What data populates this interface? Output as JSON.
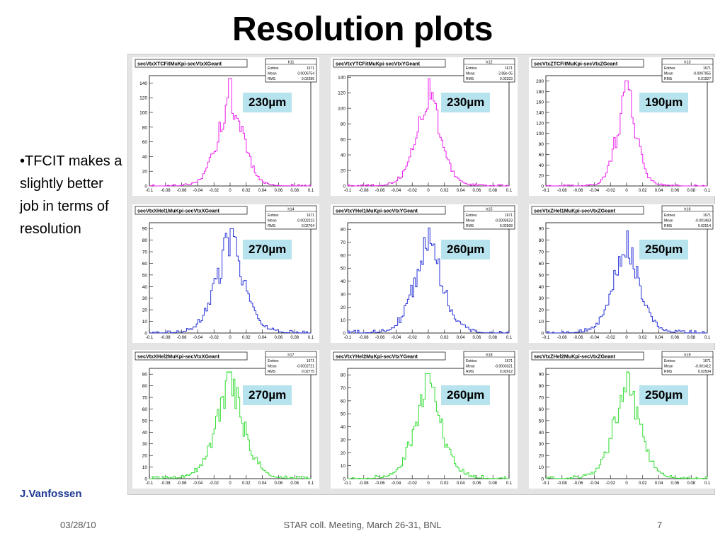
{
  "slide": {
    "title": "Resolution plots",
    "bullet": "•TFCIT makes a slightly better job in terms of resolution",
    "author": "J.Vanfossen",
    "footer_date": "03/28/10",
    "footer_meeting": "STAR coll. Meeting, March 26-31, BNL",
    "footer_page": "7"
  },
  "colors": {
    "magenta": "#ee22ee",
    "blue": "#2b35d8",
    "green": "#33dd33",
    "label_bg": "#b7e3ee"
  },
  "chart_data": [
    {
      "type": "histogram",
      "title": "secVtxXTCFitMuKpi-secVtxXGeant",
      "stats_name": "h11",
      "entries": "1671",
      "mean": "0.0006754",
      "rms": "0.02286",
      "resolution_label": "230µm",
      "color": "#ee22ee",
      "xlim": [
        -0.1,
        0.1
      ],
      "ylim": [
        0,
        150
      ],
      "peak": 146,
      "width": 0.022,
      "yticks": [
        0,
        20,
        40,
        60,
        80,
        100,
        120,
        140
      ],
      "xticks": [
        "-0.1",
        "-0.08",
        "-0.06",
        "-0.04",
        "-0.02",
        "0",
        "0.02",
        "0.04",
        "0.06",
        "0.08",
        "0.1"
      ]
    },
    {
      "type": "histogram",
      "title": "secVtxYTCFitMuKpi-secVtxYGeant",
      "stats_name": "h12",
      "entries": "1671",
      "mean": "2.88e-05",
      "rms": "0.02323",
      "resolution_label": "230µm",
      "color": "#ee22ee",
      "xlim": [
        -0.1,
        0.1
      ],
      "ylim": [
        0,
        142
      ],
      "peak": 138,
      "width": 0.022,
      "yticks": [
        0,
        20,
        40,
        60,
        80,
        100,
        120,
        140
      ],
      "xticks": [
        "-0.1",
        "-0.08",
        "-0.06",
        "-0.04",
        "-0.02",
        "0",
        "0.02",
        "0.04",
        "0.06",
        "0.08",
        "0.1"
      ]
    },
    {
      "type": "histogram",
      "title": "secVtxZTCFitMuKpi-secVtxZGeant",
      "stats_name": "h13",
      "entries": "1671",
      "mean": "-0.0007955",
      "rms": "0.01927",
      "resolution_label": "190µm",
      "color": "#ee22ee",
      "xlim": [
        -0.1,
        0.1
      ],
      "ylim": [
        0,
        210
      ],
      "peak": 200,
      "width": 0.018,
      "yticks": [
        0,
        20,
        40,
        60,
        80,
        100,
        120,
        140,
        160,
        180,
        200
      ],
      "xticks": [
        "-0.1",
        "-0.08",
        "-0.06",
        "-0.04",
        "-0.02",
        "0",
        "0.02",
        "0.04",
        "0.06",
        "0.08",
        "0.1"
      ]
    },
    {
      "type": "histogram",
      "title": "secVtxXHel1MuKpi-secVtxXGeant",
      "stats_name": "h14",
      "entries": "1671",
      "mean": "-0.0002213",
      "rms": "0.02764",
      "resolution_label": "270µm",
      "color": "#2b35d8",
      "xlim": [
        -0.1,
        0.1
      ],
      "ylim": [
        0,
        95
      ],
      "peak": 90,
      "width": 0.026,
      "yticks": [
        0,
        10,
        20,
        30,
        40,
        50,
        60,
        70,
        80,
        90
      ],
      "xticks": [
        "-0.1",
        "-0.08",
        "-0.06",
        "-0.04",
        "-0.02",
        "0",
        "0.02",
        "0.04",
        "0.06",
        "0.08",
        "0.1"
      ]
    },
    {
      "type": "histogram",
      "title": "secVtxYHel1MuKpi-secVtxYGeant",
      "stats_name": "h15",
      "entries": "1671",
      "mean": "-0.0003523",
      "rms": "0.02668",
      "resolution_label": "260µm",
      "color": "#2b35d8",
      "xlim": [
        -0.1,
        0.1
      ],
      "ylim": [
        0,
        85
      ],
      "peak": 81,
      "width": 0.025,
      "yticks": [
        0,
        10,
        20,
        30,
        40,
        50,
        60,
        70,
        80
      ],
      "xticks": [
        "-0.1",
        "-0.08",
        "-0.06",
        "-0.04",
        "-0.02",
        "0",
        "0.02",
        "0.04",
        "0.06",
        "0.08",
        "0.1"
      ]
    },
    {
      "type": "histogram",
      "title": "secVtxZHel1MuKpi-secVtxZGeant",
      "stats_name": "h16",
      "entries": "1671",
      "mean": "-0.001463",
      "rms": "0.02514",
      "resolution_label": "250µm",
      "color": "#2b35d8",
      "xlim": [
        -0.1,
        0.1
      ],
      "ylim": [
        0,
        95
      ],
      "peak": 88,
      "width": 0.024,
      "yticks": [
        0,
        10,
        20,
        30,
        40,
        50,
        60,
        70,
        80,
        90
      ],
      "xticks": [
        "-0.1",
        "-0.08",
        "-0.06",
        "-0.04",
        "-0.02",
        "0",
        "0.02",
        "0.04",
        "0.06",
        "0.08",
        "0.1"
      ]
    },
    {
      "type": "histogram",
      "title": "secVtxXHel2MuKpi-secVtxXGeant",
      "stats_name": "h17",
      "entries": "1671",
      "mean": "-0.0002721",
      "rms": "0.02775",
      "resolution_label": "270µm",
      "color": "#33dd33",
      "xlim": [
        -0.1,
        0.1
      ],
      "ylim": [
        0,
        95
      ],
      "peak": 92,
      "width": 0.026,
      "yticks": [
        0,
        10,
        20,
        30,
        40,
        50,
        60,
        70,
        80,
        90
      ],
      "xticks": [
        "-0.1",
        "-0.08",
        "-0.06",
        "-0.04",
        "-0.02",
        "0",
        "0.02",
        "0.04",
        "0.06",
        "0.08",
        "0.1"
      ]
    },
    {
      "type": "histogram",
      "title": "secVtxYHel2MuKpi-secVtxYGeant",
      "stats_name": "h18",
      "entries": "1671",
      "mean": "-0.0003321",
      "rms": "0.02612",
      "resolution_label": "260µm",
      "color": "#33dd33",
      "xlim": [
        -0.1,
        0.1
      ],
      "ylim": [
        0,
        85
      ],
      "peak": 81,
      "width": 0.025,
      "yticks": [
        0,
        10,
        20,
        30,
        40,
        50,
        60,
        70,
        80
      ],
      "xticks": [
        "-0.1",
        "-0.08",
        "-0.06",
        "-0.04",
        "-0.02",
        "0",
        "0.02",
        "0.04",
        "0.06",
        "0.08",
        "0.1"
      ]
    },
    {
      "type": "histogram",
      "title": "secVtxZHel2MuKpi-secVtxZGeant",
      "stats_name": "h19",
      "entries": "1671",
      "mean": "-0.001412",
      "rms": "0.02504",
      "resolution_label": "250µm",
      "color": "#33dd33",
      "xlim": [
        -0.1,
        0.1
      ],
      "ylim": [
        0,
        95
      ],
      "peak": 92,
      "width": 0.024,
      "yticks": [
        0,
        10,
        20,
        30,
        40,
        50,
        60,
        70,
        80,
        90
      ],
      "xticks": [
        "-0.1",
        "-0.08",
        "-0.06",
        "-0.04",
        "-0.02",
        "0",
        "0.02",
        "0.04",
        "0.06",
        "0.08",
        "0.1"
      ]
    }
  ]
}
